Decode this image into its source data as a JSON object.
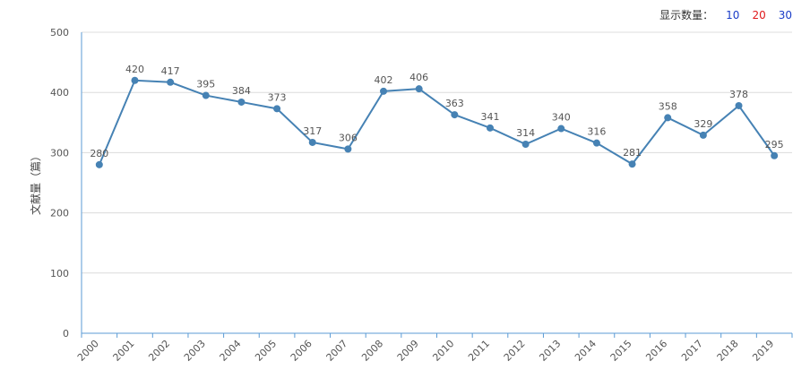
{
  "controls": {
    "label": "显示数量：",
    "options": [
      {
        "label": "10",
        "color": "#1a3cc8"
      },
      {
        "label": "20",
        "color": "#e0191b"
      },
      {
        "label": "30",
        "color": "#1a3cc8"
      }
    ]
  },
  "chart_data": {
    "type": "line",
    "title": "",
    "xlabel": "",
    "ylabel": "文献量（篇）",
    "categories": [
      "2000",
      "2001",
      "2002",
      "2003",
      "2004",
      "2005",
      "2006",
      "2007",
      "2008",
      "2009",
      "2010",
      "2011",
      "2012",
      "2013",
      "2014",
      "2015",
      "2016",
      "2017",
      "2018",
      "2019"
    ],
    "series": [
      {
        "values": [
          280,
          420,
          417,
          395,
          384,
          373,
          317,
          306,
          402,
          406,
          363,
          341,
          314,
          340,
          316,
          281,
          358,
          329,
          378,
          295
        ],
        "color": "#4682b4"
      }
    ],
    "ylim": [
      0,
      500
    ],
    "yticks": [
      0,
      100,
      200,
      300,
      400,
      500
    ],
    "grid": true,
    "legend": "none"
  }
}
